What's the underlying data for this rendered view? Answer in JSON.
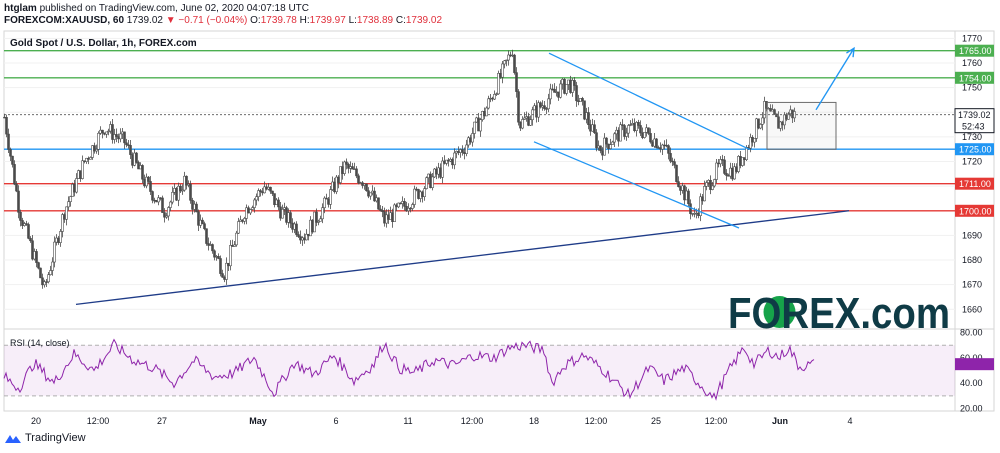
{
  "header": {
    "publisher": "htglam",
    "published_text": "published on TradingView.com, June 02, 2020 04:07:18 UTC",
    "symbol": "FOREXCOM:XAUUSD, 60",
    "last": "1739.02",
    "change_arrow": "▼",
    "change": "−0.71 (−0.04%)",
    "open_label": "O:",
    "open": "1739.78",
    "high_label": "H:",
    "high": "1739.97",
    "low_label": "L:",
    "low": "1738.89",
    "close_label": "C:",
    "close": "1739.02"
  },
  "branding": {
    "tradingview": "TradingView",
    "forex_logo": "FOREX.com"
  },
  "chart_data": {
    "type": "candlestick",
    "title": "Gold Spot / U.S. Dollar, 1h, FOREX.com",
    "ylim": [
      1652,
      1773
    ],
    "y_ticks": [
      1660,
      1670,
      1680,
      1690,
      1700,
      1710,
      1720,
      1730,
      1740,
      1750,
      1760,
      1770
    ],
    "x_tick_labels": [
      "20",
      "12:00",
      "27",
      "May",
      "6",
      "11",
      "12:00",
      "18",
      "12:00",
      "25",
      "12:00",
      "Jun",
      "4"
    ],
    "price_path": [
      {
        "t": 0,
        "p": 1738
      },
      {
        "t": 15,
        "p": 1700
      },
      {
        "t": 40,
        "p": 1668
      },
      {
        "t": 60,
        "p": 1700
      },
      {
        "t": 80,
        "p": 1720
      },
      {
        "t": 100,
        "p": 1734
      },
      {
        "t": 120,
        "p": 1728
      },
      {
        "t": 140,
        "p": 1712
      },
      {
        "t": 160,
        "p": 1700
      },
      {
        "t": 180,
        "p": 1712
      },
      {
        "t": 200,
        "p": 1690
      },
      {
        "t": 220,
        "p": 1675
      },
      {
        "t": 240,
        "p": 1700
      },
      {
        "t": 260,
        "p": 1710
      },
      {
        "t": 280,
        "p": 1698
      },
      {
        "t": 300,
        "p": 1690
      },
      {
        "t": 320,
        "p": 1702
      },
      {
        "t": 340,
        "p": 1718
      },
      {
        "t": 360,
        "p": 1712
      },
      {
        "t": 380,
        "p": 1696
      },
      {
        "t": 400,
        "p": 1702
      },
      {
        "t": 420,
        "p": 1710
      },
      {
        "t": 440,
        "p": 1718
      },
      {
        "t": 460,
        "p": 1726
      },
      {
        "t": 480,
        "p": 1740
      },
      {
        "t": 500,
        "p": 1758
      },
      {
        "t": 508,
        "p": 1766
      },
      {
        "t": 515,
        "p": 1735
      },
      {
        "t": 530,
        "p": 1740
      },
      {
        "t": 550,
        "p": 1748
      },
      {
        "t": 565,
        "p": 1752
      },
      {
        "t": 580,
        "p": 1740
      },
      {
        "t": 595,
        "p": 1725
      },
      {
        "t": 610,
        "p": 1730
      },
      {
        "t": 625,
        "p": 1734
      },
      {
        "t": 640,
        "p": 1732
      },
      {
        "t": 660,
        "p": 1726
      },
      {
        "t": 675,
        "p": 1712
      },
      {
        "t": 690,
        "p": 1697
      },
      {
        "t": 700,
        "p": 1708
      },
      {
        "t": 715,
        "p": 1718
      },
      {
        "t": 730,
        "p": 1716
      },
      {
        "t": 745,
        "p": 1728
      },
      {
        "t": 760,
        "p": 1741
      },
      {
        "t": 775,
        "p": 1735
      },
      {
        "t": 785,
        "p": 1740
      },
      {
        "t": 790,
        "p": 1739
      }
    ],
    "last_price": 1739.02,
    "countdown": "52:43",
    "horizontal_levels": [
      {
        "value": 1765,
        "label": "1765.00",
        "color": "#4caf50"
      },
      {
        "value": 1754,
        "label": "1754.00",
        "color": "#4caf50"
      },
      {
        "value": 1725,
        "label": "1725.00",
        "color": "#2196f3"
      },
      {
        "value": 1711,
        "label": "1711.00",
        "color": "#e53935"
      },
      {
        "value": 1700,
        "label": "1700.00",
        "color": "#e53935"
      }
    ],
    "trendlines": [
      {
        "name": "rising-support",
        "from": {
          "t": 72,
          "p": 1662
        },
        "to": {
          "t": 845,
          "p": 1700
        },
        "color": "#1f3c88"
      },
      {
        "name": "channel-upper",
        "from": {
          "t": 545,
          "p": 1764
        },
        "to": {
          "t": 745,
          "p": 1725
        },
        "color": "#2196f3"
      },
      {
        "name": "channel-lower",
        "from": {
          "t": 530,
          "p": 1728
        },
        "to": {
          "t": 735,
          "p": 1693
        },
        "color": "#2196f3"
      }
    ],
    "projection_arrow": {
      "from": {
        "t": 812,
        "p": 1741
      },
      "to": {
        "t": 850,
        "p": 1766
      },
      "color": "#2196f3"
    },
    "range_box": {
      "t0": 763,
      "t1": 832,
      "p0": 1725,
      "p1": 1744
    },
    "rsi": {
      "label": "RSI (14, close)",
      "ylim": [
        18,
        82
      ],
      "ticks": [
        20,
        40,
        60,
        80
      ],
      "tick_labels": [
        "20.00",
        "40.00",
        "60.00",
        "80.00"
      ],
      "band": [
        30,
        70
      ],
      "last_value": 55,
      "path": [
        {
          "t": 0,
          "p": 45
        },
        {
          "t": 15,
          "p": 36
        },
        {
          "t": 30,
          "p": 56
        },
        {
          "t": 50,
          "p": 40
        },
        {
          "t": 70,
          "p": 63
        },
        {
          "t": 90,
          "p": 50
        },
        {
          "t": 110,
          "p": 70
        },
        {
          "t": 130,
          "p": 58
        },
        {
          "t": 150,
          "p": 52
        },
        {
          "t": 170,
          "p": 40
        },
        {
          "t": 190,
          "p": 58
        },
        {
          "t": 210,
          "p": 45
        },
        {
          "t": 230,
          "p": 48
        },
        {
          "t": 250,
          "p": 60
        },
        {
          "t": 270,
          "p": 32
        },
        {
          "t": 290,
          "p": 56
        },
        {
          "t": 310,
          "p": 47
        },
        {
          "t": 330,
          "p": 62
        },
        {
          "t": 350,
          "p": 42
        },
        {
          "t": 370,
          "p": 55
        },
        {
          "t": 380,
          "p": 72
        },
        {
          "t": 395,
          "p": 52
        },
        {
          "t": 410,
          "p": 48
        },
        {
          "t": 430,
          "p": 58
        },
        {
          "t": 450,
          "p": 54
        },
        {
          "t": 470,
          "p": 62
        },
        {
          "t": 490,
          "p": 60
        },
        {
          "t": 505,
          "p": 68
        },
        {
          "t": 520,
          "p": 70
        },
        {
          "t": 540,
          "p": 66
        },
        {
          "t": 548,
          "p": 40
        },
        {
          "t": 560,
          "p": 54
        },
        {
          "t": 580,
          "p": 62
        },
        {
          "t": 600,
          "p": 50
        },
        {
          "t": 625,
          "p": 30
        },
        {
          "t": 645,
          "p": 52
        },
        {
          "t": 660,
          "p": 42
        },
        {
          "t": 680,
          "p": 52
        },
        {
          "t": 700,
          "p": 36
        },
        {
          "t": 710,
          "p": 28
        },
        {
          "t": 725,
          "p": 50
        },
        {
          "t": 740,
          "p": 68
        },
        {
          "t": 750,
          "p": 55
        },
        {
          "t": 765,
          "p": 66
        },
        {
          "t": 775,
          "p": 60
        },
        {
          "t": 785,
          "p": 68
        },
        {
          "t": 795,
          "p": 53
        },
        {
          "t": 810,
          "p": 55
        }
      ]
    }
  }
}
